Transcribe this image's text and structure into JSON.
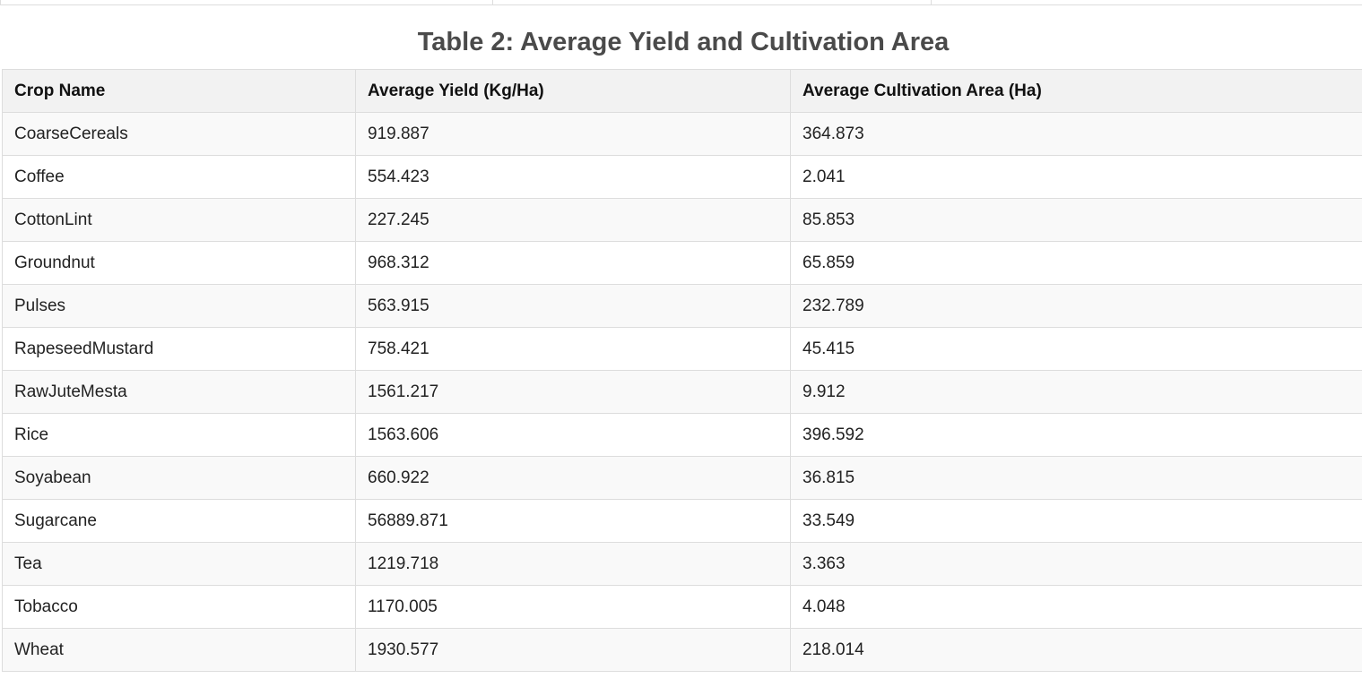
{
  "table": {
    "title": "Table 2: Average Yield and Cultivation Area",
    "headers": [
      "Crop Name",
      "Average Yield (Kg/Ha)",
      "Average Cultivation Area (Ha)"
    ],
    "rows": [
      [
        "CoarseCereals",
        "919.887",
        "364.873"
      ],
      [
        "Coffee",
        "554.423",
        "2.041"
      ],
      [
        "CottonLint",
        "227.245",
        "85.853"
      ],
      [
        "Groundnut",
        "968.312",
        "65.859"
      ],
      [
        "Pulses",
        "563.915",
        "232.789"
      ],
      [
        "RapeseedMustard",
        "758.421",
        "45.415"
      ],
      [
        "RawJuteMesta",
        "1561.217",
        "9.912"
      ],
      [
        "Rice",
        "1563.606",
        "396.592"
      ],
      [
        "Soyabean",
        "660.922",
        "36.815"
      ],
      [
        "Sugarcane",
        "56889.871",
        "33.549"
      ],
      [
        "Tea",
        "1219.718",
        "3.363"
      ],
      [
        "Tobacco",
        "1170.005",
        "4.048"
      ],
      [
        "Wheat",
        "1930.577",
        "218.014"
      ]
    ]
  }
}
